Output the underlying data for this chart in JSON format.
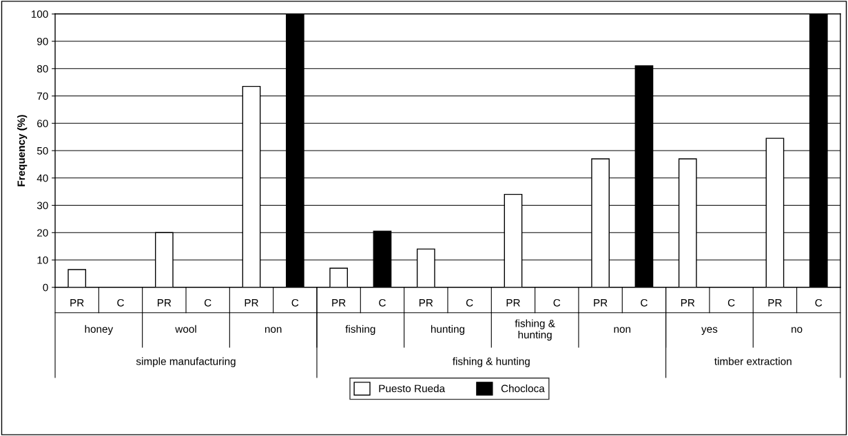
{
  "chart_data": {
    "type": "bar",
    "ylabel": "Frequency (%)",
    "categories": [
      "PR",
      "C",
      "PR",
      "C",
      "PR",
      "C",
      "PR",
      "C",
      "PR",
      "C",
      "PR",
      "C",
      "PR",
      "C",
      "PR",
      "C",
      "PR",
      "C"
    ],
    "series": [
      {
        "name": "Puesto Rueda",
        "color": "#ffffff",
        "values": [
          6.5,
          null,
          20,
          null,
          73.5,
          null,
          7,
          null,
          14,
          null,
          34,
          null,
          47,
          null,
          47,
          null,
          54.5,
          null
        ]
      },
      {
        "name": "Chocloca",
        "color": "#000000",
        "values": [
          null,
          0,
          null,
          0,
          null,
          100,
          null,
          20.5,
          null,
          0,
          null,
          0,
          null,
          81,
          null,
          0,
          null,
          100
        ]
      }
    ],
    "annotations": [
      "honey",
      "wool",
      "non",
      "fishing",
      "hunting",
      "fishing &\nhunting",
      "non",
      "yes",
      "no",
      "simple manufacturing",
      "fishing & hunting",
      "timber extraction"
    ],
    "ylim": [
      0,
      100
    ],
    "yticks": [
      0,
      10,
      20,
      30,
      40,
      50,
      60,
      70,
      80,
      90,
      100
    ],
    "grid": "y",
    "legend": "bottom"
  }
}
